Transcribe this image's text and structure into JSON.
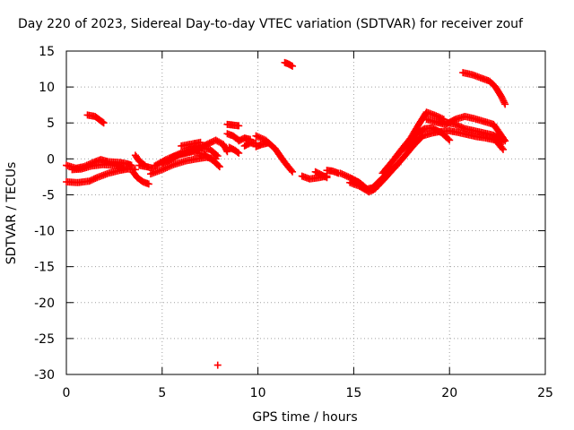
{
  "chart_data": {
    "type": "scatter",
    "title": "Day 220 of 2023, Sidereal Day-to-day VTEC variation (SDTVAR) for receiver zouf",
    "xlabel": "GPS time / hours",
    "ylabel": "SDTVAR / TECUs",
    "xlim": [
      0,
      25
    ],
    "ylim": [
      -30,
      15
    ],
    "xticks": [
      0,
      5,
      10,
      15,
      20,
      25
    ],
    "yticks": [
      -30,
      -25,
      -20,
      -15,
      -10,
      -5,
      0,
      5,
      10,
      15
    ],
    "xtick_labels": [
      "0",
      "5",
      "10",
      "15",
      "20",
      "25"
    ],
    "ytick_labels": [
      "-30",
      "-25",
      "-20",
      "-15",
      "-10",
      "-5",
      "0",
      "5",
      "10",
      "15"
    ],
    "grid": true,
    "marker": "plus",
    "color": "#ff0000",
    "series": [
      {
        "name": "arc-1",
        "points": [
          [
            0.0,
            -3.2
          ],
          [
            0.6,
            -3.3
          ],
          [
            1.2,
            -3.1
          ],
          [
            1.6,
            -2.6
          ],
          [
            2.2,
            -2.0
          ],
          [
            2.8,
            -1.6
          ],
          [
            3.2,
            -1.4
          ],
          [
            3.6,
            -1.5
          ]
        ]
      },
      {
        "name": "arc-2",
        "points": [
          [
            0.0,
            -0.9
          ],
          [
            0.5,
            -1.3
          ],
          [
            0.9,
            -1.1
          ],
          [
            1.4,
            -0.5
          ],
          [
            1.8,
            -0.1
          ],
          [
            2.2,
            -0.4
          ],
          [
            2.8,
            -0.5
          ],
          [
            3.2,
            -0.7
          ],
          [
            3.4,
            -0.9
          ]
        ]
      },
      {
        "name": "arc-3",
        "points": [
          [
            0.3,
            -1.5
          ],
          [
            0.8,
            -1.4
          ],
          [
            1.3,
            -1.0
          ],
          [
            1.9,
            -0.8
          ],
          [
            2.5,
            -0.9
          ],
          [
            3.0,
            -1.3
          ]
        ]
      },
      {
        "name": "arc-4",
        "points": [
          [
            1.1,
            6.1
          ],
          [
            1.5,
            5.9
          ],
          [
            1.8,
            5.3
          ],
          [
            1.95,
            5.0
          ]
        ]
      },
      {
        "name": "arc-5",
        "points": [
          [
            3.5,
            -1.9
          ],
          [
            3.7,
            -2.6
          ],
          [
            4.0,
            -3.2
          ],
          [
            4.3,
            -3.5
          ]
        ]
      },
      {
        "name": "arc-6",
        "points": [
          [
            3.6,
            0.5
          ],
          [
            3.8,
            -0.3
          ],
          [
            4.1,
            -0.9
          ]
        ]
      },
      {
        "name": "arc-7",
        "points": [
          [
            3.8,
            -0.9
          ],
          [
            4.2,
            -1.1
          ],
          [
            4.5,
            -1.3
          ]
        ]
      },
      {
        "name": "arc-8",
        "points": [
          [
            4.4,
            -2.1
          ],
          [
            5.0,
            -1.5
          ],
          [
            5.6,
            -0.8
          ],
          [
            6.2,
            -0.3
          ],
          [
            6.8,
            0.0
          ],
          [
            7.3,
            0.2
          ],
          [
            7.8,
            0.0
          ]
        ]
      },
      {
        "name": "arc-9",
        "points": [
          [
            4.6,
            -1.0
          ],
          [
            5.2,
            -0.1
          ],
          [
            5.8,
            0.6
          ],
          [
            6.4,
            1.3
          ],
          [
            7.0,
            1.6
          ],
          [
            7.5,
            1.3
          ],
          [
            7.9,
            0.4
          ]
        ]
      },
      {
        "name": "arc-10",
        "points": [
          [
            5.0,
            -0.7
          ],
          [
            5.6,
            0.3
          ],
          [
            6.2,
            0.8
          ],
          [
            6.8,
            1.3
          ],
          [
            7.4,
            2.1
          ],
          [
            7.8,
            2.6
          ],
          [
            8.2,
            2.0
          ],
          [
            8.4,
            1.0
          ]
        ]
      },
      {
        "name": "arc-11",
        "points": [
          [
            5.3,
            -0.3
          ],
          [
            5.9,
            0.6
          ],
          [
            6.6,
            1.0
          ],
          [
            7.2,
            0.6
          ],
          [
            7.7,
            -0.3
          ],
          [
            8.0,
            -1.1
          ]
        ]
      },
      {
        "name": "arc-12",
        "points": [
          [
            6.0,
            1.8
          ],
          [
            6.6,
            2.1
          ],
          [
            7.0,
            2.3
          ]
        ]
      },
      {
        "name": "arc-13",
        "points": [
          [
            8.4,
            4.8
          ],
          [
            8.7,
            4.7
          ],
          [
            9.0,
            4.6
          ]
        ]
      },
      {
        "name": "arc-14",
        "points": [
          [
            8.4,
            3.5
          ],
          [
            8.7,
            3.2
          ],
          [
            9.0,
            2.6
          ]
        ]
      },
      {
        "name": "arc-15",
        "points": [
          [
            8.5,
            1.6
          ],
          [
            8.8,
            1.2
          ],
          [
            9.0,
            0.8
          ]
        ]
      },
      {
        "name": "arc-16",
        "points": [
          [
            9.0,
            2.5
          ],
          [
            9.3,
            2.9
          ],
          [
            9.6,
            2.7
          ]
        ]
      },
      {
        "name": "arc-17",
        "points": [
          [
            9.3,
            1.8
          ],
          [
            9.6,
            2.2
          ],
          [
            9.9,
            2.2
          ]
        ]
      },
      {
        "name": "arc-18",
        "points": [
          [
            9.9,
            3.2
          ],
          [
            10.4,
            2.6
          ],
          [
            10.9,
            1.4
          ],
          [
            11.4,
            -0.5
          ],
          [
            11.8,
            -1.8
          ]
        ]
      },
      {
        "name": "arc-19",
        "points": [
          [
            9.9,
            1.7
          ],
          [
            10.2,
            2.0
          ],
          [
            10.5,
            2.2
          ]
        ]
      },
      {
        "name": "arc-20",
        "points": [
          [
            11.4,
            13.4
          ],
          [
            11.6,
            13.2
          ],
          [
            11.8,
            12.9
          ]
        ]
      },
      {
        "name": "arc-21",
        "points": [
          [
            12.3,
            -2.4
          ],
          [
            12.7,
            -2.8
          ],
          [
            13.2,
            -2.6
          ],
          [
            13.6,
            -2.4
          ]
        ]
      },
      {
        "name": "arc-22",
        "points": [
          [
            13.0,
            -1.8
          ],
          [
            13.3,
            -2.2
          ],
          [
            13.6,
            -2.6
          ]
        ]
      },
      {
        "name": "arc-23",
        "points": [
          [
            13.6,
            -1.6
          ],
          [
            13.9,
            -1.7
          ],
          [
            14.2,
            -2.0
          ]
        ]
      },
      {
        "name": "arc-24",
        "points": [
          [
            14.3,
            -2.0
          ],
          [
            14.8,
            -2.6
          ],
          [
            15.3,
            -3.3
          ],
          [
            15.7,
            -4.2
          ],
          [
            16.0,
            -4.0
          ],
          [
            16.3,
            -3.2
          ],
          [
            16.8,
            -1.9
          ],
          [
            17.3,
            -0.8
          ]
        ]
      },
      {
        "name": "arc-25",
        "points": [
          [
            14.8,
            -3.3
          ],
          [
            15.3,
            -3.8
          ],
          [
            15.8,
            -4.6
          ],
          [
            16.1,
            -4.2
          ],
          [
            16.6,
            -2.8
          ],
          [
            17.1,
            -1.3
          ],
          [
            17.6,
            0.2
          ],
          [
            18.1,
            1.8
          ],
          [
            18.6,
            3.2
          ]
        ]
      },
      {
        "name": "arc-26",
        "points": [
          [
            16.5,
            -2.0
          ],
          [
            17.0,
            -0.4
          ],
          [
            17.5,
            1.2
          ],
          [
            18.0,
            3.0
          ],
          [
            18.4,
            4.8
          ],
          [
            18.8,
            6.5
          ],
          [
            19.3,
            6.0
          ],
          [
            19.7,
            5.5
          ]
        ]
      },
      {
        "name": "arc-27",
        "points": [
          [
            17.2,
            0.3
          ],
          [
            17.7,
            2.0
          ],
          [
            18.2,
            3.4
          ],
          [
            18.7,
            4.2
          ],
          [
            19.1,
            4.3
          ],
          [
            19.6,
            3.6
          ],
          [
            20.0,
            2.6
          ]
        ]
      },
      {
        "name": "arc-28",
        "points": [
          [
            17.6,
            1.4
          ],
          [
            18.1,
            2.6
          ],
          [
            18.6,
            3.2
          ],
          [
            19.1,
            3.6
          ],
          [
            19.5,
            3.8
          ],
          [
            20.0,
            3.9
          ],
          [
            20.4,
            3.7
          ],
          [
            20.9,
            3.4
          ],
          [
            21.4,
            3.1
          ],
          [
            21.9,
            2.9
          ],
          [
            22.4,
            2.6
          ],
          [
            22.8,
            1.3
          ]
        ]
      },
      {
        "name": "arc-29",
        "points": [
          [
            18.8,
            5.5
          ],
          [
            19.3,
            5.1
          ],
          [
            19.8,
            4.8
          ],
          [
            20.3,
            5.5
          ],
          [
            20.8,
            5.9
          ],
          [
            21.3,
            5.6
          ],
          [
            21.8,
            5.2
          ],
          [
            22.3,
            4.8
          ],
          [
            22.9,
            2.5
          ]
        ]
      },
      {
        "name": "arc-30",
        "points": [
          [
            19.3,
            5.2
          ],
          [
            19.8,
            5.1
          ],
          [
            20.3,
            4.8
          ],
          [
            20.8,
            4.2
          ],
          [
            21.3,
            3.9
          ],
          [
            21.8,
            3.6
          ],
          [
            22.3,
            3.3
          ],
          [
            22.8,
            2.4
          ]
        ]
      },
      {
        "name": "arc-31",
        "points": [
          [
            20.7,
            12.0
          ],
          [
            21.2,
            11.7
          ],
          [
            21.7,
            11.2
          ],
          [
            22.1,
            10.8
          ],
          [
            22.4,
            10.0
          ],
          [
            22.7,
            8.7
          ],
          [
            22.9,
            7.6
          ]
        ]
      },
      {
        "name": "outlier",
        "points": [
          [
            7.9,
            -28.7
          ]
        ]
      }
    ]
  }
}
